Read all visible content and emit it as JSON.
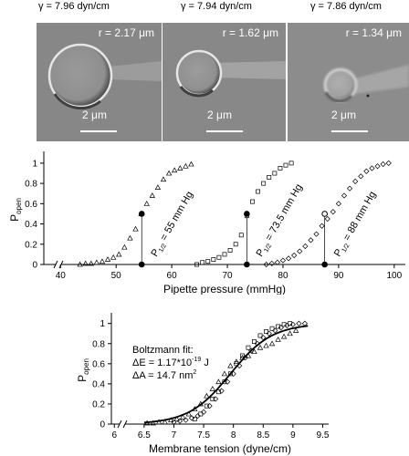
{
  "micrographs": [
    {
      "tension": "γ = 7.96 dyn/cm",
      "radius": "r = 2.17 μm",
      "scale": "2 μm"
    },
    {
      "tension": "γ = 7.94 dyn/cm",
      "radius": "r = 1.62 μm",
      "scale": "2 μm"
    },
    {
      "tension": "γ = 7.86 dyn/cm",
      "radius": "r = 1.34 μm",
      "scale": "2 μm"
    }
  ],
  "chart_data": [
    {
      "type": "scatter",
      "xlabel": "Pipette pressure (mmHg)",
      "ylabel_main": "P",
      "ylabel_sub": "open",
      "xlim": [
        37,
        102
      ],
      "ylim": [
        0,
        1.08
      ],
      "xticks": [
        40,
        50,
        60,
        70,
        80,
        90,
        100
      ],
      "yticks": [
        0,
        0.2,
        0.4,
        0.6,
        0.8,
        1
      ],
      "ytick_labels": [
        "0",
        "0.2",
        "0.4",
        "0.6",
        "0.8",
        "1"
      ],
      "axis_break": true,
      "series": [
        {
          "marker": "triangle",
          "x": [
            43.5,
            44.5,
            45.5,
            46.5,
            47.5,
            48.5,
            49.5,
            50.5,
            51.5,
            52.5,
            53.5,
            54.5,
            55.5,
            56.5,
            57.5,
            58.5,
            59.5,
            60.5,
            61.5,
            62.5,
            63.5
          ],
          "y": [
            0,
            0.01,
            0.01,
            0.02,
            0.03,
            0.05,
            0.07,
            0.1,
            0.17,
            0.26,
            0.35,
            0.5,
            0.6,
            0.68,
            0.76,
            0.84,
            0.9,
            0.93,
            0.95,
            0.97,
            0.99
          ],
          "p_half": 54.6,
          "p_half_label": "P",
          "p_half_sub": "1/2",
          "p_half_value": "= 55 mm Hg"
        },
        {
          "marker": "square",
          "x": [
            64.5,
            65.5,
            66.5,
            67.5,
            68.5,
            69.5,
            70.5,
            71.5,
            72.5,
            73.5,
            74.5,
            75.5,
            76.5,
            77.5,
            78.5,
            79.5,
            80.5,
            81.5
          ],
          "y": [
            0,
            0.02,
            0.03,
            0.05,
            0.07,
            0.1,
            0.14,
            0.2,
            0.29,
            0.48,
            0.62,
            0.72,
            0.8,
            0.86,
            0.9,
            0.95,
            0.98,
            1.0
          ],
          "p_half": 73.5,
          "p_half_label": "P",
          "p_half_sub": "1/2",
          "p_half_value": "= 73.5 mm Hg"
        },
        {
          "marker": "diamond",
          "x": [
            77,
            78,
            79,
            80,
            81,
            82,
            83,
            84,
            85,
            86,
            87,
            88,
            89,
            90,
            91,
            92,
            93,
            94,
            95,
            96,
            97,
            98,
            99
          ],
          "y": [
            0,
            0.01,
            0.02,
            0.04,
            0.06,
            0.09,
            0.13,
            0.18,
            0.24,
            0.3,
            0.38,
            0.45,
            0.52,
            0.6,
            0.68,
            0.75,
            0.82,
            0.87,
            0.92,
            0.95,
            0.97,
            0.99,
            1.0
          ],
          "p_half": 87.5,
          "p_half_label": "P",
          "p_half_sub": "1/2",
          "p_half_value": "= 88 mm Hg"
        }
      ]
    },
    {
      "type": "scatter",
      "xlabel": "Membrane tension (dyne/cm)",
      "ylabel_main": "P",
      "ylabel_sub": "open",
      "xlim": [
        5.95,
        9.6
      ],
      "ylim": [
        0,
        1.07
      ],
      "xticks": [
        6,
        6.5,
        7,
        7.5,
        8,
        8.5,
        9,
        9.5
      ],
      "yticks": [
        0,
        0.2,
        0.4,
        0.6,
        0.8,
        1
      ],
      "ytick_labels": [
        "0",
        "0.2",
        "0.4",
        "0.6",
        "0.8",
        "1"
      ],
      "axis_break": true,
      "fit_text": [
        "Boltzmann fit:",
        "ΔE = 1.17*10",
        "-19",
        " J",
        "ΔA = 14.7 nm",
        "2"
      ],
      "fit_curve": {
        "x_half": 7.95,
        "slope": 0.35,
        "x_start": 6.5,
        "x_end": 9.25
      },
      "series": [
        {
          "marker": "triangle",
          "x": [
            6.55,
            6.65,
            6.75,
            6.85,
            6.95,
            7.05,
            7.15,
            7.25,
            7.35,
            7.45,
            7.55,
            7.65,
            7.75,
            7.85,
            7.95,
            8.05,
            8.15,
            8.25,
            8.35,
            8.45,
            8.55,
            8.65,
            8.75,
            8.85,
            8.95,
            9.05
          ],
          "y": [
            0.01,
            0.01,
            0.02,
            0.02,
            0.04,
            0.05,
            0.07,
            0.1,
            0.15,
            0.2,
            0.28,
            0.35,
            0.42,
            0.5,
            0.58,
            0.62,
            0.66,
            0.68,
            0.72,
            0.76,
            0.78,
            0.8,
            0.84,
            0.87,
            0.9,
            0.93
          ]
        },
        {
          "marker": "square",
          "x": [
            7.35,
            7.45,
            7.55,
            7.65,
            7.75,
            7.85,
            7.95,
            8.05,
            8.15,
            8.25,
            8.35,
            8.45,
            8.55,
            8.65,
            8.75,
            8.85,
            8.95
          ],
          "y": [
            0.05,
            0.1,
            0.18,
            0.25,
            0.32,
            0.42,
            0.5,
            0.6,
            0.68,
            0.76,
            0.82,
            0.88,
            0.92,
            0.95,
            0.97,
            0.99,
            1.0
          ]
        },
        {
          "marker": "diamond",
          "x": [
            7.0,
            7.1,
            7.2,
            7.3,
            7.4,
            7.5,
            7.6,
            7.7,
            7.8,
            7.9,
            8.0,
            8.1,
            8.2,
            8.3,
            8.4,
            8.5,
            8.6,
            8.7,
            8.8,
            8.9,
            9.0,
            9.1,
            9.2
          ],
          "y": [
            0.02,
            0.03,
            0.04,
            0.06,
            0.08,
            0.12,
            0.18,
            0.25,
            0.33,
            0.42,
            0.5,
            0.58,
            0.66,
            0.73,
            0.8,
            0.86,
            0.9,
            0.93,
            0.96,
            0.98,
            0.99,
            1.0,
            1.0
          ]
        }
      ]
    }
  ]
}
